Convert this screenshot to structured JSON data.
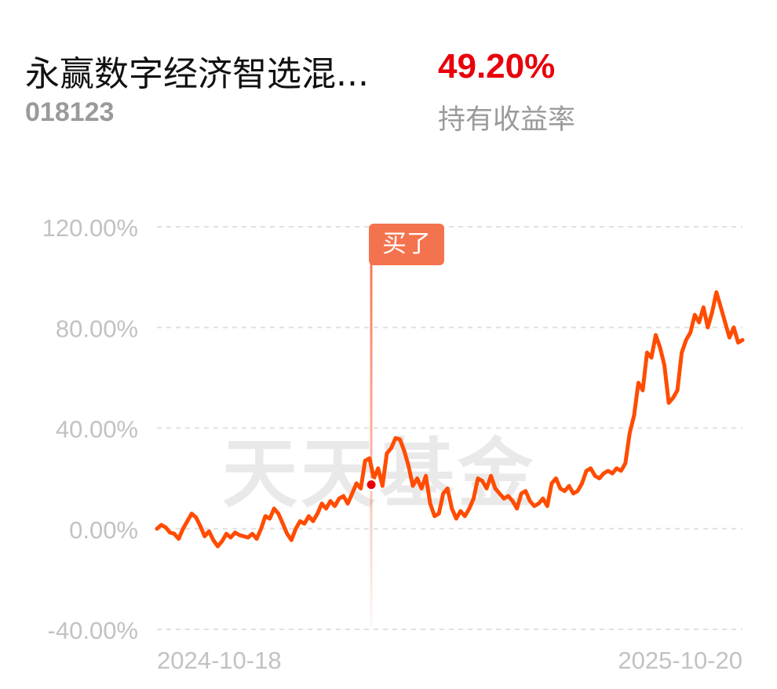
{
  "header": {
    "fund_name": "永赢数字经济智选混...",
    "fund_code": "018123",
    "return_value": "49.20%",
    "return_label": "持有收益率"
  },
  "watermark": "天天基金",
  "colors": {
    "line": "#ff4c00",
    "return": "#e8000b",
    "buy_tag": "#f4734f",
    "grid": "#e0e0e0",
    "tick_text": "#c2c2c2"
  },
  "chart_data": {
    "type": "line",
    "title": "",
    "xlabel": "",
    "ylabel": "",
    "ylim": [
      -40,
      120
    ],
    "y_ticks": [
      120,
      80,
      40,
      0,
      -40
    ],
    "y_tick_labels": [
      "120.00%",
      "80.00%",
      "40.00%",
      "0.00%",
      "-40.00%"
    ],
    "x_start": "2024-10-18",
    "x_end": "2025-10-20",
    "x_tick_labels": [
      "2024-10-18",
      "2025-10-20"
    ],
    "grid": "horizontal dashed",
    "series": [
      {
        "values": [
          0.0,
          1.5,
          0.5,
          -1.5,
          -2.0,
          -4.0,
          0.0,
          3.0,
          6.0,
          4.5,
          1.0,
          -3.0,
          -1.0,
          -4.5,
          -7.0,
          -5.0,
          -2.0,
          -3.5,
          -1.5,
          -2.5,
          -3.0,
          -3.5,
          -2.0,
          -4.0,
          0.0,
          5.0,
          4.0,
          8.0,
          6.0,
          2.0,
          -2.0,
          -4.5,
          0.0,
          3.0,
          2.0,
          5.0,
          3.0,
          6.0,
          10.0,
          8.0,
          11.0,
          9.0,
          12.0,
          13.0,
          10.0,
          14.0,
          18.0,
          16.0,
          27.0,
          28.0,
          20.0,
          24.0,
          17.0,
          30.0,
          32.0,
          36.0,
          35.5,
          31.0,
          25.0,
          17.0,
          20.0,
          16.0,
          21.0,
          10.0,
          5.0,
          6.0,
          14.0,
          16.0,
          8.0,
          4.0,
          7.0,
          5.0,
          8.0,
          12.0,
          20.0,
          19.0,
          16.0,
          21.0,
          16.0,
          14.0,
          12.0,
          13.0,
          11.0,
          8.0,
          14.0,
          15.0,
          11.0,
          9.0,
          10.0,
          12.0,
          9.0,
          18.0,
          20.0,
          16.0,
          15.0,
          17.0,
          14.0,
          15.0,
          18.0,
          23.0,
          24.0,
          21.0,
          20.0,
          22.0,
          23.0,
          22.0,
          24.0,
          23.0,
          26.0,
          38.0,
          45.0,
          58.0,
          55.0,
          70.0,
          68.0,
          77.0,
          72.0,
          65.0,
          50.0,
          52.0,
          55.0,
          70.0,
          75.0,
          78.0,
          85.0,
          82.0,
          88.0,
          80.0,
          86.0,
          94.0,
          88.0,
          82.0,
          76.0,
          80.0,
          74.0,
          75.0
        ]
      }
    ],
    "annotation": {
      "label": "买了",
      "x_fraction": 0.366,
      "value": 17.5
    }
  }
}
